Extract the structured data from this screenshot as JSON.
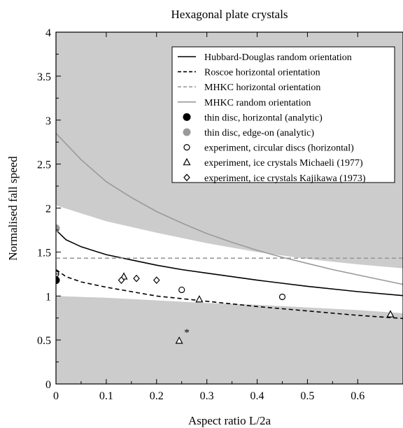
{
  "chart_data": {
    "type": "line",
    "title": "Hexagonal plate crystals",
    "xlabel": "Aspect ratio L/2a",
    "ylabel": "Normalised fall speed",
    "xlim": [
      0,
      0.7
    ],
    "ylim": [
      0,
      4
    ],
    "xticks": [
      0,
      0.1,
      0.2,
      0.3,
      0.4,
      0.5,
      0.6
    ],
    "xtick_labels": [
      "0",
      "0.1",
      "0.2",
      "0.3",
      "0.4",
      "0.5",
      "0.6"
    ],
    "yticks": [
      0,
      0.5,
      1,
      1.5,
      2,
      2.5,
      3,
      3.5,
      4
    ],
    "ytick_labels": [
      "0",
      "0.5",
      "1",
      "1.5",
      "2",
      "2.5",
      "3",
      "3.5",
      "4"
    ],
    "grid": false,
    "legend_position": "top-right",
    "shaded_band": {
      "x": [
        0,
        0.1,
        0.2,
        0.3,
        0.4,
        0.5,
        0.6,
        0.7
      ],
      "upper": [
        2.03,
        1.85,
        1.72,
        1.6,
        1.5,
        1.42,
        1.36,
        1.31
      ],
      "lower": [
        1.0,
        0.98,
        0.95,
        0.92,
        0.9,
        0.87,
        0.84,
        0.8
      ],
      "color": "#cccccc"
    },
    "series": [
      {
        "name": "Hubbard-Douglas random orientation",
        "kind": "line",
        "style": "solid",
        "color": "#000000",
        "x": [
          0,
          0.02,
          0.05,
          0.1,
          0.15,
          0.2,
          0.25,
          0.3,
          0.4,
          0.5,
          0.6,
          0.7
        ],
        "y": [
          1.75,
          1.64,
          1.56,
          1.47,
          1.41,
          1.35,
          1.3,
          1.26,
          1.18,
          1.11,
          1.05,
          1.0
        ]
      },
      {
        "name": "Roscoe horizontal orientation",
        "kind": "line",
        "style": "dashed",
        "color": "#000000",
        "x": [
          0,
          0.02,
          0.05,
          0.1,
          0.15,
          0.2,
          0.25,
          0.3,
          0.4,
          0.5,
          0.6,
          0.7
        ],
        "y": [
          1.3,
          1.22,
          1.16,
          1.1,
          1.05,
          1.0,
          0.97,
          0.94,
          0.88,
          0.83,
          0.78,
          0.74
        ]
      },
      {
        "name": "MHKC horizontal orientation",
        "kind": "line",
        "style": "dashed",
        "color": "#9a9a9a",
        "x": [
          0,
          0.7
        ],
        "y": [
          1.43,
          1.43
        ]
      },
      {
        "name": "MHKC random orientation",
        "kind": "line",
        "style": "solid",
        "color": "#9a9a9a",
        "x": [
          0,
          0.05,
          0.1,
          0.15,
          0.2,
          0.25,
          0.3,
          0.35,
          0.4,
          0.45,
          0.5,
          0.55,
          0.6,
          0.65,
          0.7
        ],
        "y": [
          2.85,
          2.55,
          2.3,
          2.12,
          1.96,
          1.83,
          1.71,
          1.61,
          1.52,
          1.44,
          1.37,
          1.3,
          1.24,
          1.18,
          1.12
        ]
      },
      {
        "name": "thin disc, horizontal (analytic)",
        "kind": "marker",
        "marker": "filled-circle",
        "color": "#000000",
        "x": [
          0
        ],
        "y": [
          1.18
        ]
      },
      {
        "name": "thin disc, edge-on (analytic)",
        "kind": "marker",
        "marker": "filled-circle",
        "color": "#9a9a9a",
        "x": [
          0
        ],
        "y": [
          1.77
        ]
      },
      {
        "name": "experiment, circular discs (horizontal)",
        "kind": "marker",
        "marker": "open-circle",
        "color": "#000000",
        "x": [
          0,
          0.25,
          0.45
        ],
        "y": [
          1.25,
          1.07,
          0.99
        ]
      },
      {
        "name": "experiment, ice crystals Michaeli (1977)",
        "kind": "marker",
        "marker": "open-triangle",
        "color": "#000000",
        "x": [
          0.135,
          0.245,
          0.285,
          0.665
        ],
        "y": [
          1.22,
          0.49,
          0.96,
          0.79
        ]
      },
      {
        "name": "experiment, ice crystals Kajikawa (1973)",
        "kind": "marker",
        "marker": "open-diamond",
        "color": "#000000",
        "x": [
          0.13,
          0.16,
          0.2
        ],
        "y": [
          1.18,
          1.2,
          1.18
        ]
      }
    ],
    "annotations": [
      {
        "text": "*",
        "x": 0.255,
        "y": 0.55
      }
    ]
  }
}
